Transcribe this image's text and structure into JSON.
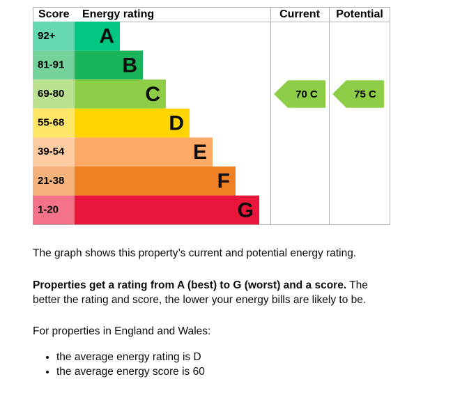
{
  "header": {
    "score": "Score",
    "rating": "Energy rating",
    "current": "Current",
    "potential": "Potential"
  },
  "bands": [
    {
      "score": "92+",
      "letter": "A",
      "color": "#00c781",
      "light": "#66d9b3"
    },
    {
      "score": "81-91",
      "letter": "B",
      "color": "#19b459",
      "light": "#75d29b"
    },
    {
      "score": "69-80",
      "letter": "C",
      "color": "#8dce46",
      "light": "#bbe290"
    },
    {
      "score": "55-68",
      "letter": "D",
      "color": "#ffd500",
      "light": "#ffe666"
    },
    {
      "score": "39-54",
      "letter": "E",
      "color": "#fcaa65",
      "light": "#fdcca3"
    },
    {
      "score": "21-38",
      "letter": "F",
      "color": "#ef8023",
      "light": "#f5b37b"
    },
    {
      "score": "1-20",
      "letter": "G",
      "color": "#e9153b",
      "light": "#f2738a"
    }
  ],
  "current": {
    "label": "70 C",
    "color": "#8dce46"
  },
  "potential": {
    "label": "75 C",
    "color": "#8dce46"
  },
  "text": {
    "p1": "The graph shows this property’s current and potential energy rating.",
    "p2_bold": "Properties get a rating from A (best) to G (worst) and a score.",
    "p2_rest": " The better the rating and score, the lower your energy bills are likely to be.",
    "p3": "For properties in England and Wales:",
    "bullets": [
      "the average energy rating is D",
      "the average energy score is 60"
    ]
  }
}
